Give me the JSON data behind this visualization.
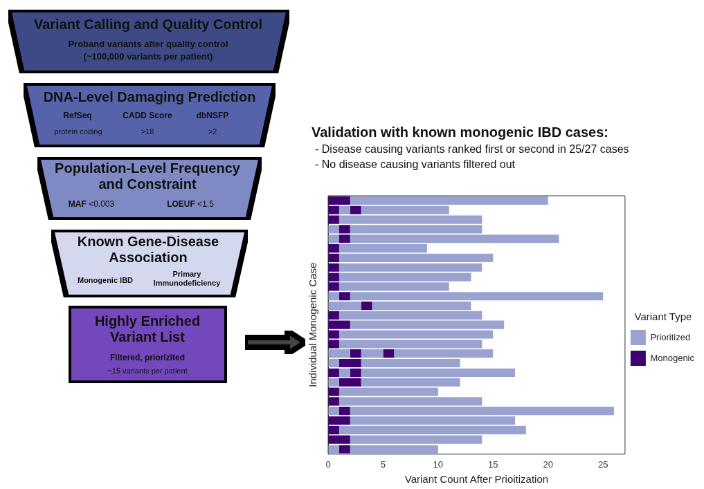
{
  "chart_data": [
    {
      "type": "other",
      "annotations": [
        "Variant Calling and Quality Control",
        "Proband variants after quality control",
        "(~100,000 variants per patient)",
        "DNA-Level Damaging Prediction",
        "RefSeq",
        "CADD Score",
        "dbNSFP",
        "protein coding",
        ">18",
        ">2",
        "Population-Level Frequency and Constraint",
        "MAF",
        "<0.003",
        "LOEUF",
        "<1.5",
        "Known Gene-Disease Association",
        "Monogenic IBD",
        "Primary Immunodeficiency",
        "Highly Enriched Variant List",
        "Filtered, priorizited",
        "~15 variants per patient"
      ]
    },
    {
      "type": "bar",
      "orientation": "horizontal",
      "stacked": true,
      "title": "Validation with known monogenic IBD cases:",
      "annotations": [
        "- Disease causing variants ranked first or second in 25/27 cases",
        "- No disease causing variants filtered out"
      ],
      "xlabel": "Variant Count After Prioitization",
      "ylabel": "Individual Monogenic Case",
      "legend_title": "Variant Type",
      "legend": "right",
      "tick_labels": "x",
      "categories": [
        null,
        null,
        null,
        null,
        null,
        null,
        null,
        null,
        null,
        null,
        null,
        null,
        null,
        null,
        null,
        null,
        null,
        null,
        null,
        null,
        null,
        null,
        null,
        null,
        null,
        null,
        null
      ],
      "xlim": [
        0,
        27
      ],
      "xticks": [
        0,
        5,
        10,
        15,
        20,
        25
      ],
      "grid": false,
      "series": [
        {
          "color": "#9aa3cf",
          "values": [
            null,
            null,
            null,
            1,
            1,
            null,
            null,
            null,
            null,
            null,
            1,
            3,
            null,
            null,
            null,
            null,
            2,
            1,
            null,
            1,
            null,
            null,
            1,
            null,
            null,
            null,
            1
          ]
        },
        {
          "name": "Monogenic",
          "color": "#3f0071",
          "values": [
            2,
            1,
            1,
            1,
            1,
            1,
            1,
            1,
            1,
            1,
            1,
            1,
            1,
            2,
            1,
            1,
            1,
            2,
            1,
            2,
            1,
            1,
            1,
            2,
            1,
            2,
            1
          ]
        },
        {
          "name": "Prioritized",
          "color": "#9aa3cf",
          "values": [
            18,
            1,
            13,
            12,
            19,
            8,
            14,
            13,
            12,
            10,
            23,
            9,
            13,
            14,
            14,
            13,
            2,
            9,
            1,
            9,
            9,
            13,
            24,
            15,
            17,
            12,
            8
          ]
        },
        {
          "color": "#3f0071",
          "values": [
            null,
            1,
            null,
            null,
            null,
            null,
            null,
            null,
            null,
            null,
            null,
            null,
            null,
            null,
            null,
            null,
            1,
            null,
            1,
            null,
            null,
            null,
            null,
            null,
            null,
            null,
            null
          ]
        },
        {
          "color": "#9aa3cf",
          "values": [
            null,
            8,
            null,
            null,
            null,
            null,
            null,
            null,
            null,
            null,
            null,
            null,
            null,
            null,
            null,
            null,
            9,
            null,
            14,
            null,
            null,
            null,
            null,
            null,
            null,
            null,
            null
          ]
        }
      ]
    }
  ]
}
